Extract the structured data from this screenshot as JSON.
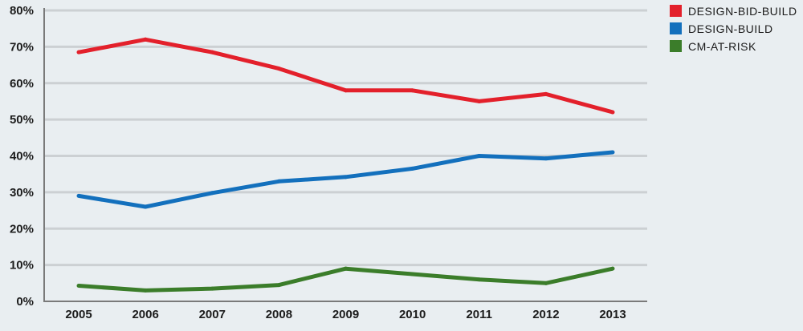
{
  "chart_data": {
    "type": "line",
    "x": [
      "2005",
      "2006",
      "2007",
      "2008",
      "2009",
      "2010",
      "2011",
      "2012",
      "2013"
    ],
    "ylim": [
      0,
      80
    ],
    "yticks": [
      0,
      10,
      20,
      30,
      40,
      50,
      60,
      70,
      80
    ],
    "ytick_labels": [
      "0%",
      "10%",
      "20%",
      "30%",
      "40%",
      "50%",
      "60%",
      "70%",
      "80%"
    ],
    "grid": true,
    "legend_position": "top-right",
    "series": [
      {
        "name": "DESIGN-BID-BUILD",
        "color": "#e3202b",
        "values": [
          68.5,
          72,
          68.5,
          64,
          58,
          58,
          55,
          57,
          52
        ]
      },
      {
        "name": "DESIGN-BUILD",
        "color": "#1370bd",
        "values": [
          29,
          26,
          29.8,
          33,
          34.2,
          36.5,
          40,
          39.3,
          41
        ]
      },
      {
        "name": "CM-AT-RISK",
        "color": "#3b7d2a",
        "values": [
          4.3,
          3,
          3.5,
          4.5,
          9,
          7.5,
          6,
          5,
          9
        ]
      }
    ]
  }
}
